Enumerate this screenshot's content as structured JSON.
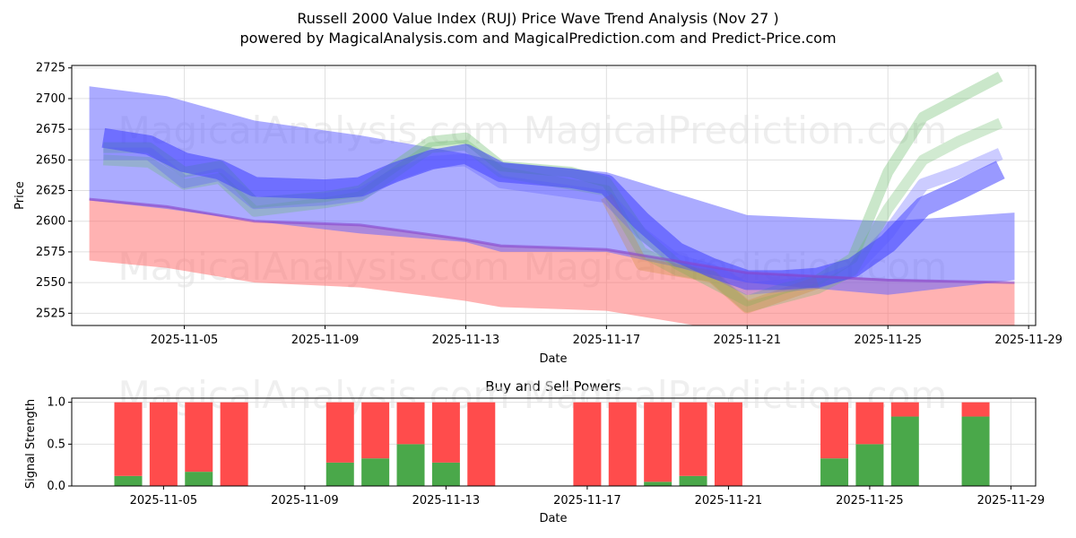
{
  "chart_data": [
    {
      "type": "area",
      "title": "Russell 2000 Value Index (RUJ) Price Wave Trend Analysis (Nov 27 )",
      "subtitle": "powered by MagicalAnalysis.com and MagicalPrediction.com and Predict-Price.com",
      "xlabel": "Date",
      "ylabel": "Price",
      "ylim": [
        2515,
        2727
      ],
      "xlim_day_of_nov": [
        1.8,
        29.2
      ],
      "yticks": [
        2525,
        2550,
        2575,
        2600,
        2625,
        2650,
        2675,
        2700,
        2725
      ],
      "xticks": [
        {
          "day": 5,
          "label": "2025-11-05"
        },
        {
          "day": 9,
          "label": "2025-11-09"
        },
        {
          "day": 13,
          "label": "2025-11-13"
        },
        {
          "day": 17,
          "label": "2025-11-17"
        },
        {
          "day": 21,
          "label": "2025-11-21"
        },
        {
          "day": 25,
          "label": "2025-11-25"
        },
        {
          "day": 29,
          "label": "2025-11-29"
        }
      ],
      "grid": true,
      "bands": [
        {
          "name": "red-band",
          "color": "#ff6666",
          "opacity": 0.5,
          "points": [
            [
              2.3,
              2568,
              2618
            ],
            [
              4.5,
              2562,
              2612
            ],
            [
              7,
              2550,
              2600
            ],
            [
              10,
              2546,
              2597
            ],
            [
              13,
              2535,
              2585
            ],
            [
              14,
              2530,
              2580
            ],
            [
              17,
              2527,
              2577
            ],
            [
              21,
              2508,
              2558
            ],
            [
              25,
              2505,
              2553
            ],
            [
              28.6,
              2508,
              2550
            ]
          ]
        },
        {
          "name": "blue-wide-band",
          "color": "#6666ff",
          "opacity": 0.55,
          "points": [
            [
              2.3,
              2617,
              2710
            ],
            [
              4.5,
              2610,
              2702
            ],
            [
              7,
              2600,
              2682
            ],
            [
              10,
              2590,
              2670
            ],
            [
              13,
              2583,
              2655
            ],
            [
              14,
              2575,
              2648
            ],
            [
              17,
              2575,
              2640
            ],
            [
              21,
              2550,
              2605
            ],
            [
              25,
              2540,
              2600
            ],
            [
              28.6,
              2552,
              2607
            ]
          ]
        }
      ],
      "paths": [
        {
          "name": "green-wave",
          "color": "#66bb66",
          "opacity": 0.35,
          "width": 12,
          "points": [
            [
              2.7,
              2660
            ],
            [
              4,
              2660
            ],
            [
              5,
              2640
            ],
            [
              6,
              2645
            ],
            [
              7,
              2615
            ],
            [
              9,
              2620
            ],
            [
              10,
              2625
            ],
            [
              11,
              2645
            ],
            [
              12,
              2665
            ],
            [
              13,
              2668
            ],
            [
              14,
              2645
            ],
            [
              16,
              2640
            ],
            [
              17,
              2632
            ],
            [
              18,
              2590
            ],
            [
              19,
              2565
            ],
            [
              20,
              2550
            ],
            [
              21,
              2535
            ],
            [
              22,
              2545
            ],
            [
              23,
              2552
            ],
            [
              24,
              2570
            ],
            [
              25,
              2640
            ],
            [
              26,
              2685
            ],
            [
              27,
              2700
            ],
            [
              28.2,
              2718
            ]
          ]
        },
        {
          "name": "green-wave-2",
          "color": "#66bb66",
          "opacity": 0.3,
          "width": 12,
          "points": [
            [
              2.7,
              2650
            ],
            [
              4,
              2648
            ],
            [
              5,
              2630
            ],
            [
              6,
              2635
            ],
            [
              7,
              2608
            ],
            [
              9,
              2615
            ],
            [
              10,
              2620
            ],
            [
              11,
              2640
            ],
            [
              12,
              2660
            ],
            [
              13,
              2662
            ],
            [
              14,
              2640
            ],
            [
              17,
              2625
            ],
            [
              18,
              2575
            ],
            [
              19,
              2560
            ],
            [
              20,
              2555
            ],
            [
              21,
              2530
            ],
            [
              23,
              2545
            ],
            [
              24,
              2560
            ],
            [
              25,
              2610
            ],
            [
              26,
              2650
            ],
            [
              27,
              2665
            ],
            [
              28.2,
              2680
            ]
          ]
        },
        {
          "name": "orange-wave",
          "color": "#cc8833",
          "opacity": 0.3,
          "width": 14,
          "points": [
            [
              17,
              2620
            ],
            [
              18,
              2565
            ],
            [
              19,
              2560
            ],
            [
              20,
              2555
            ],
            [
              21,
              2530
            ],
            [
              22,
              2540
            ],
            [
              23,
              2550
            ]
          ]
        },
        {
          "name": "blue-wave",
          "color": "#3333ff",
          "opacity": 0.5,
          "width": 22,
          "points": [
            [
              2.7,
              2668
            ],
            [
              4,
              2662
            ],
            [
              5,
              2648
            ],
            [
              6,
              2642
            ],
            [
              7,
              2628
            ],
            [
              9,
              2626
            ],
            [
              10,
              2628
            ],
            [
              11,
              2640
            ],
            [
              12,
              2650
            ],
            [
              13,
              2655
            ],
            [
              14,
              2640
            ],
            [
              16,
              2635
            ],
            [
              17,
              2630
            ],
            [
              18,
              2600
            ],
            [
              19,
              2575
            ],
            [
              20,
              2562
            ],
            [
              21,
              2552
            ],
            [
              22,
              2552
            ],
            [
              23,
              2554
            ],
            [
              24,
              2562
            ],
            [
              25,
              2582
            ],
            [
              26,
              2612
            ],
            [
              27,
              2625
            ],
            [
              28.2,
              2642
            ]
          ]
        },
        {
          "name": "blue-wave-2",
          "color": "#5555ff",
          "opacity": 0.3,
          "width": 14,
          "points": [
            [
              2.7,
              2655
            ],
            [
              4,
              2655
            ],
            [
              5,
              2632
            ],
            [
              6,
              2638
            ],
            [
              7,
              2615
            ],
            [
              9,
              2618
            ],
            [
              10,
              2622
            ],
            [
              11,
              2638
            ],
            [
              12,
              2648
            ],
            [
              13,
              2650
            ],
            [
              14,
              2632
            ],
            [
              17,
              2620
            ],
            [
              18,
              2590
            ],
            [
              19,
              2568
            ],
            [
              20,
              2560
            ],
            [
              21,
              2545
            ],
            [
              23,
              2550
            ],
            [
              24,
              2560
            ],
            [
              25,
              2590
            ],
            [
              26,
              2630
            ],
            [
              27,
              2640
            ],
            [
              28.2,
              2655
            ]
          ]
        },
        {
          "name": "blue-lower-line",
          "color": "#8844cc",
          "opacity": 0.6,
          "width": 3,
          "points": [
            [
              2.3,
              2618
            ],
            [
              4.5,
              2612
            ],
            [
              7,
              2600
            ],
            [
              10,
              2597
            ],
            [
              13,
              2585
            ],
            [
              14,
              2580
            ],
            [
              17,
              2577
            ],
            [
              21,
              2558
            ],
            [
              25,
              2552
            ],
            [
              28.6,
              2550
            ]
          ]
        }
      ],
      "watermarks": [
        "MagicalAnalysis.com",
        "MagicalPrediction.com"
      ]
    },
    {
      "type": "bar",
      "title": "Buy and Sell Powers",
      "xlabel": "Date",
      "ylabel": "Signal Strength",
      "ylim": [
        0,
        1.05
      ],
      "yticks": [
        0.0,
        0.5,
        1.0
      ],
      "ytick_labels": [
        "0.0",
        "0.5",
        "1.0"
      ],
      "xlim_day_of_nov": [
        2.4,
        29.7
      ],
      "xticks": [
        {
          "day": 5,
          "label": "2025-11-05"
        },
        {
          "day": 9,
          "label": "2025-11-09"
        },
        {
          "day": 13,
          "label": "2025-11-13"
        },
        {
          "day": 17,
          "label": "2025-11-17"
        },
        {
          "day": 21,
          "label": "2025-11-21"
        },
        {
          "day": 25,
          "label": "2025-11-25"
        },
        {
          "day": 29,
          "label": "2025-11-29"
        }
      ],
      "buy_color": "#4aa84a",
      "sell_color": "#ff4c4c",
      "days": [
        4,
        5,
        6,
        7,
        10,
        11,
        12,
        13,
        14,
        17,
        18,
        19,
        20,
        21,
        24,
        25,
        26,
        28
      ],
      "buy": [
        0.12,
        0,
        0.17,
        0,
        0.28,
        0.33,
        0.5,
        0.28,
        0,
        0,
        0,
        0.05,
        0.12,
        0,
        0.33,
        0.5,
        0.83,
        0.83
      ],
      "sell": [
        0.88,
        1,
        0.83,
        1,
        0.72,
        0.67,
        0.5,
        0.72,
        1,
        1,
        1,
        0.95,
        0.88,
        1,
        0.67,
        0.5,
        0.17,
        0.17
      ],
      "watermarks": [
        "MagicalAnalysis.com",
        "MagicalPrediction.com"
      ]
    }
  ]
}
